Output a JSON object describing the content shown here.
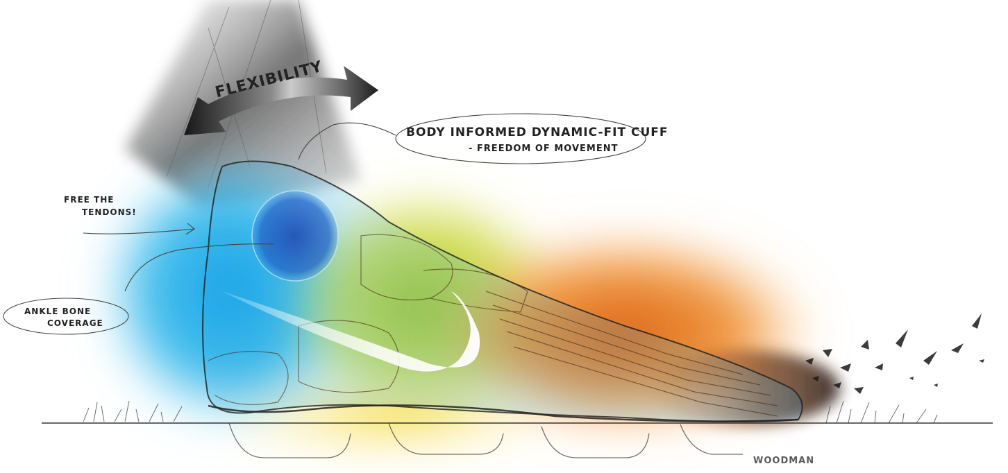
{
  "annotations": {
    "flexibility": "FLEXIBILITY",
    "cuff_line1": "BODY INFORMED DYNAMIC-FIT CUFF",
    "cuff_line2": "- FREEDOM OF MOVEMENT",
    "tendons_line1": "FREE THE",
    "tendons_line2": "TENDONS!",
    "ankle_line1": "ANKLE BONE",
    "ankle_line2": "COVERAGE"
  },
  "signature": "WOODMAN",
  "colors": {
    "ankle_blue": "#1fa8e6",
    "ankle_bone_dark": "#1d4fb8",
    "midfoot_green": "#b7c817",
    "forefoot_orange": "#e4751b",
    "toe_dark": "#2a1a0e",
    "sole_yellow": "#f3d21a"
  },
  "icons": [
    "flex-arrow-icon",
    "swoosh-icon",
    "grass-icon",
    "dirt-splash-icon"
  ]
}
